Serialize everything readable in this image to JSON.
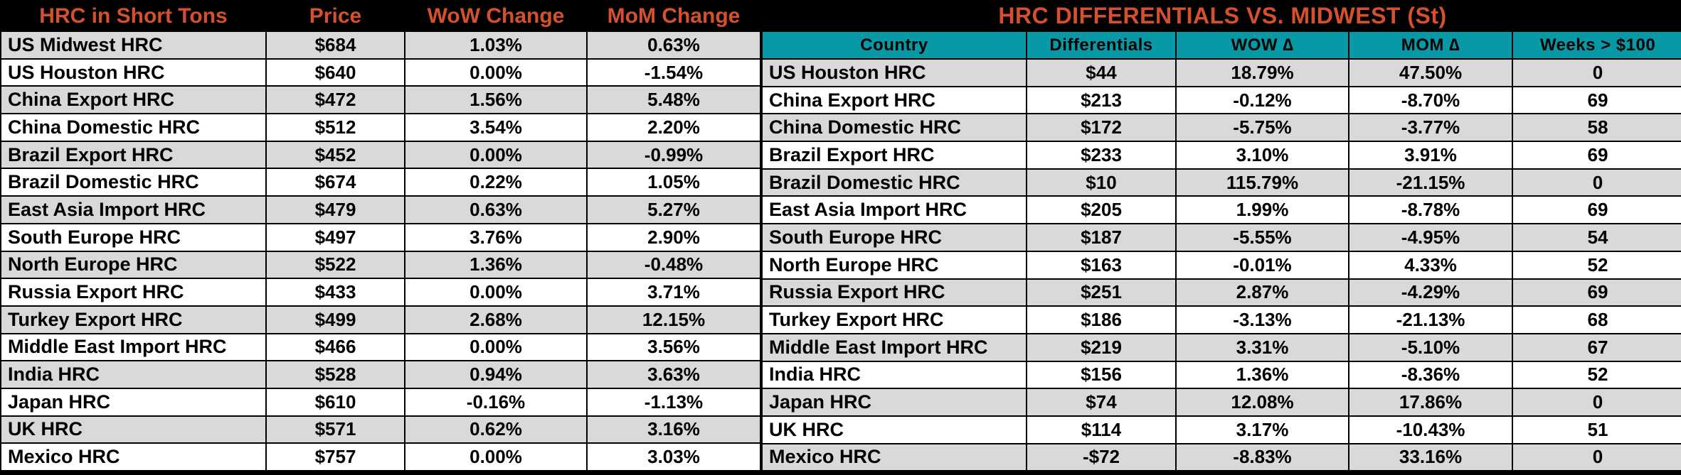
{
  "colors": {
    "accent_orange": "#D5502E",
    "teal": "#0899A6",
    "row_gray": "#D9D9D9",
    "row_white": "#FFFFFF",
    "grid_black": "#000000"
  },
  "chart_data": [
    {
      "type": "table",
      "title": "HRC in Short Tons",
      "columns": [
        "HRC in Short Tons",
        "Price",
        "WoW Change",
        "MoM Change"
      ],
      "rows": [
        {
          "name": "US Midwest HRC",
          "price": "$684",
          "wow": "1.03%",
          "mom": "0.63%"
        },
        {
          "name": "US Houston HRC",
          "price": "$640",
          "wow": "0.00%",
          "mom": "-1.54%"
        },
        {
          "name": "China Export HRC",
          "price": "$472",
          "wow": "1.56%",
          "mom": "5.48%"
        },
        {
          "name": "China Domestic HRC",
          "price": "$512",
          "wow": "3.54%",
          "mom": "2.20%"
        },
        {
          "name": "Brazil Export HRC",
          "price": "$452",
          "wow": "0.00%",
          "mom": "-0.99%"
        },
        {
          "name": "Brazil Domestic HRC",
          "price": "$674",
          "wow": "0.22%",
          "mom": "1.05%"
        },
        {
          "name": "East Asia Import HRC",
          "price": "$479",
          "wow": "0.63%",
          "mom": "5.27%"
        },
        {
          "name": "South Europe HRC",
          "price": "$497",
          "wow": "3.76%",
          "mom": "2.90%"
        },
        {
          "name": "North Europe HRC",
          "price": "$522",
          "wow": "1.36%",
          "mom": "-0.48%"
        },
        {
          "name": "Russia Export HRC",
          "price": "$433",
          "wow": "0.00%",
          "mom": "3.71%"
        },
        {
          "name": "Turkey Export HRC",
          "price": "$499",
          "wow": "2.68%",
          "mom": "12.15%"
        },
        {
          "name": "Middle East Import HRC",
          "price": "$466",
          "wow": "0.00%",
          "mom": "3.56%"
        },
        {
          "name": "India HRC",
          "price": "$528",
          "wow": "0.94%",
          "mom": "3.63%"
        },
        {
          "name": "Japan HRC",
          "price": "$610",
          "wow": "-0.16%",
          "mom": "-1.13%"
        },
        {
          "name": "UK HRC",
          "price": "$571",
          "wow": "0.62%",
          "mom": "3.16%"
        },
        {
          "name": "Mexico HRC",
          "price": "$757",
          "wow": "0.00%",
          "mom": "3.03%"
        }
      ]
    },
    {
      "type": "table",
      "title": "HRC DIFFERENTIALS VS. MIDWEST (St)",
      "columns": [
        "Country",
        "Differentials",
        "WOW ∆",
        "MOM ∆",
        "Weeks > $100"
      ],
      "rows": [
        {
          "name": "US Houston HRC",
          "diff": "$44",
          "wow": "18.79%",
          "mom": "47.50%",
          "weeks": "0"
        },
        {
          "name": "China Export HRC",
          "diff": "$213",
          "wow": "-0.12%",
          "mom": "-8.70%",
          "weeks": "69"
        },
        {
          "name": "China Domestic HRC",
          "diff": "$172",
          "wow": "-5.75%",
          "mom": "-3.77%",
          "weeks": "58"
        },
        {
          "name": "Brazil Export HRC",
          "diff": "$233",
          "wow": "3.10%",
          "mom": "3.91%",
          "weeks": "69"
        },
        {
          "name": "Brazil Domestic HRC",
          "diff": "$10",
          "wow": "115.79%",
          "mom": "-21.15%",
          "weeks": "0"
        },
        {
          "name": "East Asia Import HRC",
          "diff": "$205",
          "wow": "1.99%",
          "mom": "-8.78%",
          "weeks": "69"
        },
        {
          "name": "South Europe HRC",
          "diff": "$187",
          "wow": "-5.55%",
          "mom": "-4.95%",
          "weeks": "54"
        },
        {
          "name": "North Europe HRC",
          "diff": "$163",
          "wow": "-0.01%",
          "mom": "4.33%",
          "weeks": "52"
        },
        {
          "name": "Russia Export HRC",
          "diff": "$251",
          "wow": "2.87%",
          "mom": "-4.29%",
          "weeks": "69"
        },
        {
          "name": "Turkey Export HRC",
          "diff": "$186",
          "wow": "-3.13%",
          "mom": "-21.13%",
          "weeks": "68"
        },
        {
          "name": "Middle East Import HRC",
          "diff": "$219",
          "wow": "3.31%",
          "mom": "-5.10%",
          "weeks": "67"
        },
        {
          "name": "India HRC",
          "diff": "$156",
          "wow": "1.36%",
          "mom": "-8.36%",
          "weeks": "52"
        },
        {
          "name": "Japan HRC",
          "diff": "$74",
          "wow": "12.08%",
          "mom": "17.86%",
          "weeks": "0"
        },
        {
          "name": "UK HRC",
          "diff": "$114",
          "wow": "3.17%",
          "mom": "-10.43%",
          "weeks": "51"
        },
        {
          "name": "Mexico HRC",
          "diff": "-$72",
          "wow": "-8.83%",
          "mom": "33.16%",
          "weeks": "0"
        }
      ]
    }
  ]
}
